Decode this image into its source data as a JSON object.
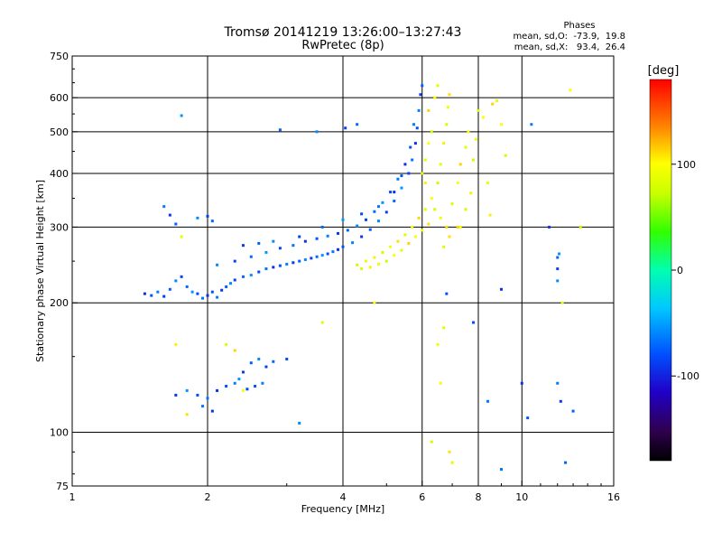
{
  "chart_data": {
    "type": "scatter",
    "title": "Tromsø 20141219 13:26:00–13:27:43",
    "subtitle": "RwPretec (8p)",
    "xlabel": "Frequency [MHz]",
    "ylabel": "Stationary phase Virtual Height [km]",
    "xscale": "log",
    "yscale": "log",
    "xlim": [
      1,
      16
    ],
    "ylim": [
      75,
      750
    ],
    "xticks": [
      1,
      2,
      4,
      6,
      8,
      10,
      16
    ],
    "yticks": [
      75,
      100,
      200,
      300,
      400,
      500,
      600,
      750
    ],
    "x_gridlines": [
      2,
      4,
      6,
      8,
      10
    ],
    "y_gridlines": [
      100,
      200,
      300,
      400,
      500,
      600
    ],
    "grid": true,
    "stats": {
      "title": "Phases",
      "line1": "mean, sd,O:  -73.9,  19.8",
      "line2": "mean, sd,X:   93.4,  26.4"
    },
    "colorbar": {
      "label": "[deg]",
      "range": [
        -180,
        180
      ],
      "ticks": [
        100,
        0,
        -100
      ],
      "placement": "right"
    },
    "series": [
      {
        "name": "O",
        "mean_phase": -73.9,
        "points": [
          [
            1.45,
            210
          ],
          [
            1.5,
            208
          ],
          [
            1.55,
            212
          ],
          [
            1.6,
            207
          ],
          [
            1.65,
            215
          ],
          [
            1.7,
            225
          ],
          [
            1.75,
            230
          ],
          [
            1.8,
            218
          ],
          [
            1.85,
            212
          ],
          [
            1.9,
            210
          ],
          [
            1.95,
            205
          ],
          [
            2.0,
            208
          ],
          [
            2.05,
            212
          ],
          [
            2.1,
            206
          ],
          [
            2.15,
            214
          ],
          [
            2.2,
            218
          ],
          [
            2.25,
            222
          ],
          [
            2.3,
            226
          ],
          [
            2.4,
            230
          ],
          [
            2.5,
            232
          ],
          [
            2.6,
            236
          ],
          [
            2.7,
            240
          ],
          [
            2.8,
            242
          ],
          [
            2.9,
            244
          ],
          [
            3.0,
            246
          ],
          [
            3.1,
            248
          ],
          [
            3.2,
            250
          ],
          [
            3.3,
            252
          ],
          [
            3.4,
            254
          ],
          [
            3.5,
            256
          ],
          [
            3.6,
            258
          ],
          [
            3.7,
            260
          ],
          [
            3.8,
            263
          ],
          [
            3.9,
            266
          ],
          [
            4.0,
            270
          ],
          [
            4.2,
            276
          ],
          [
            4.4,
            285
          ],
          [
            4.6,
            296
          ],
          [
            4.8,
            310
          ],
          [
            5.0,
            325
          ],
          [
            5.2,
            345
          ],
          [
            5.4,
            370
          ],
          [
            5.6,
            400
          ],
          [
            5.7,
            430
          ],
          [
            5.8,
            470
          ],
          [
            5.85,
            510
          ],
          [
            5.9,
            560
          ],
          [
            5.95,
            610
          ],
          [
            6.0,
            640
          ],
          [
            2.1,
            245
          ],
          [
            2.3,
            250
          ],
          [
            2.5,
            256
          ],
          [
            2.7,
            262
          ],
          [
            2.9,
            268
          ],
          [
            3.1,
            272
          ],
          [
            3.3,
            278
          ],
          [
            3.5,
            282
          ],
          [
            3.7,
            286
          ],
          [
            3.9,
            290
          ],
          [
            4.1,
            295
          ],
          [
            4.3,
            302
          ],
          [
            4.5,
            312
          ],
          [
            4.7,
            326
          ],
          [
            4.9,
            342
          ],
          [
            5.1,
            362
          ],
          [
            5.3,
            388
          ],
          [
            5.5,
            420
          ],
          [
            5.65,
            460
          ],
          [
            5.75,
            520
          ],
          [
            2.4,
            272
          ],
          [
            2.6,
            275
          ],
          [
            2.8,
            278
          ],
          [
            3.2,
            285
          ],
          [
            3.6,
            300
          ],
          [
            4.0,
            312
          ],
          [
            4.4,
            322
          ],
          [
            4.8,
            335
          ],
          [
            5.2,
            362
          ],
          [
            5.4,
            395
          ],
          [
            1.6,
            335
          ],
          [
            1.65,
            320
          ],
          [
            1.7,
            305
          ],
          [
            1.9,
            315
          ],
          [
            2.0,
            318
          ],
          [
            2.05,
            310
          ],
          [
            1.8,
            125
          ],
          [
            1.9,
            122
          ],
          [
            2.0,
            120
          ],
          [
            2.1,
            125
          ],
          [
            2.2,
            128
          ],
          [
            2.3,
            130
          ],
          [
            2.4,
            138
          ],
          [
            2.5,
            145
          ],
          [
            2.6,
            148
          ],
          [
            2.7,
            142
          ],
          [
            2.8,
            146
          ],
          [
            2.35,
            133
          ],
          [
            2.45,
            126
          ],
          [
            1.95,
            115
          ],
          [
            2.05,
            112
          ],
          [
            2.55,
            128
          ],
          [
            2.65,
            130
          ],
          [
            1.7,
            122
          ],
          [
            2.9,
            505
          ],
          [
            3.5,
            500
          ],
          [
            4.05,
            510
          ],
          [
            4.3,
            520
          ],
          [
            1.75,
            545
          ],
          [
            3.0,
            148
          ],
          [
            9.0,
            82
          ],
          [
            10.0,
            130
          ],
          [
            10.3,
            108
          ],
          [
            12.0,
            130
          ],
          [
            12.2,
            118
          ],
          [
            12.5,
            85
          ],
          [
            12.0,
            225
          ],
          [
            12.0,
            240
          ],
          [
            12.0,
            255
          ],
          [
            12.1,
            260
          ],
          [
            7.8,
            180
          ],
          [
            8.4,
            118
          ],
          [
            9.0,
            215
          ],
          [
            6.8,
            210
          ],
          [
            10.5,
            520
          ],
          [
            11.5,
            300
          ],
          [
            13.0,
            112
          ],
          [
            3.2,
            105
          ]
        ]
      },
      {
        "name": "X",
        "mean_phase": 93.4,
        "points": [
          [
            4.3,
            245
          ],
          [
            4.5,
            250
          ],
          [
            4.7,
            255
          ],
          [
            4.9,
            262
          ],
          [
            5.1,
            270
          ],
          [
            5.3,
            278
          ],
          [
            5.5,
            288
          ],
          [
            5.7,
            300
          ],
          [
            5.9,
            315
          ],
          [
            6.1,
            330
          ],
          [
            6.3,
            350
          ],
          [
            6.5,
            380
          ],
          [
            6.6,
            420
          ],
          [
            6.7,
            470
          ],
          [
            6.8,
            520
          ],
          [
            6.85,
            570
          ],
          [
            6.9,
            610
          ],
          [
            6.5,
            640
          ],
          [
            6.4,
            600
          ],
          [
            6.2,
            560
          ],
          [
            6.1,
            430
          ],
          [
            6.2,
            470
          ],
          [
            6.3,
            500
          ],
          [
            6.0,
            400
          ],
          [
            6.1,
            380
          ],
          [
            6.4,
            330
          ],
          [
            6.6,
            315
          ],
          [
            6.8,
            300
          ],
          [
            7.0,
            340
          ],
          [
            7.2,
            380
          ],
          [
            7.3,
            420
          ],
          [
            7.5,
            460
          ],
          [
            7.6,
            500
          ],
          [
            7.8,
            430
          ],
          [
            7.9,
            480
          ],
          [
            7.7,
            360
          ],
          [
            7.5,
            330
          ],
          [
            7.3,
            300
          ],
          [
            6.9,
            285
          ],
          [
            6.7,
            270
          ],
          [
            5.8,
            285
          ],
          [
            5.6,
            275
          ],
          [
            5.4,
            265
          ],
          [
            5.2,
            258
          ],
          [
            5.0,
            250
          ],
          [
            4.8,
            246
          ],
          [
            4.6,
            242
          ],
          [
            4.4,
            240
          ],
          [
            6.0,
            295
          ],
          [
            6.2,
            305
          ],
          [
            8.0,
            560
          ],
          [
            8.2,
            540
          ],
          [
            8.6,
            580
          ],
          [
            8.8,
            590
          ],
          [
            9.0,
            520
          ],
          [
            9.2,
            440
          ],
          [
            8.4,
            380
          ],
          [
            8.5,
            320
          ],
          [
            6.3,
            95
          ],
          [
            6.5,
            160
          ],
          [
            6.9,
            90
          ],
          [
            7.0,
            85
          ],
          [
            6.6,
            130
          ],
          [
            7.2,
            300
          ],
          [
            6.7,
            175
          ],
          [
            12.8,
            625
          ],
          [
            13.5,
            300
          ],
          [
            12.3,
            200
          ],
          [
            1.7,
            160
          ],
          [
            2.2,
            160
          ],
          [
            2.4,
            125
          ],
          [
            1.8,
            110
          ],
          [
            3.6,
            180
          ],
          [
            4.7,
            200
          ],
          [
            2.3,
            155
          ],
          [
            1.75,
            285
          ]
        ]
      }
    ]
  }
}
